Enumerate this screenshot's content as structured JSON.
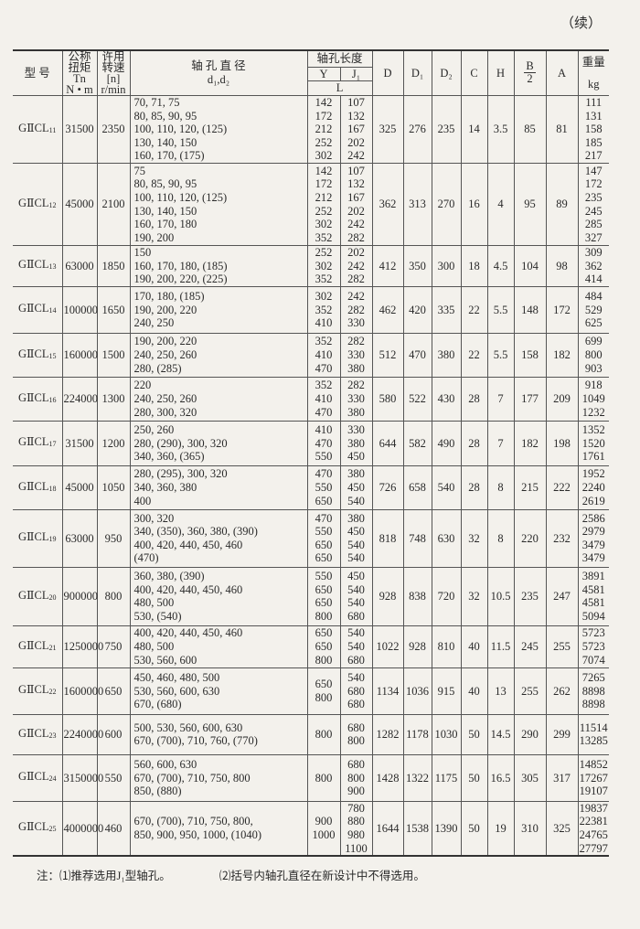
{
  "continued": "（续）",
  "header": {
    "model": "型  号",
    "torque": "公称\n扭矩\nTn\nN • m",
    "speed": "许用\n转速\n[n]\nr/min",
    "diameter": "轴  孔  直  径\nd₁,d₂",
    "length": "轴孔长度",
    "Y": "Y",
    "J1": "J₁",
    "L": "L",
    "D": "D",
    "D1": "D₁",
    "D2": "D₂",
    "C": "C",
    "H": "H",
    "B_top": "B",
    "B_bottom": "2",
    "A": "A",
    "weight": "重量\n\nkg"
  },
  "rows": [
    {
      "model": "GⅡCL",
      "sub": "11",
      "torque": "31500",
      "speed": "2350",
      "dia": [
        "70, 71, 75",
        "80, 85, 90, 95",
        "100, 110, 120, (125)",
        "130, 140, 150",
        "160, 170, (175)"
      ],
      "Y": [
        "142",
        "172",
        "212",
        "252",
        "302"
      ],
      "J1": [
        "107",
        "132",
        "167",
        "202",
        "242"
      ],
      "D": "325",
      "D1": "276",
      "D2": "235",
      "C": "14",
      "H": "3.5",
      "B2": "85",
      "A": "81",
      "kg": [
        "111",
        "131",
        "158",
        "185",
        "217"
      ]
    },
    {
      "model": "GⅡCL",
      "sub": "12",
      "torque": "45000",
      "speed": "2100",
      "dia": [
        "75",
        "80, 85, 90, 95",
        "100, 110, 120, (125)",
        "130, 140, 150",
        "160, 170, 180",
        "190, 200"
      ],
      "Y": [
        "142",
        "172",
        "212",
        "252",
        "302",
        "352"
      ],
      "J1": [
        "107",
        "132",
        "167",
        "202",
        "242",
        "282"
      ],
      "D": "362",
      "D1": "313",
      "D2": "270",
      "C": "16",
      "H": "4",
      "B2": "95",
      "A": "89",
      "kg": [
        "147",
        "172",
        "235",
        "245",
        "285",
        "327"
      ]
    },
    {
      "model": "GⅡCL",
      "sub": "13",
      "torque": "63000",
      "speed": "1850",
      "dia": [
        "150",
        "160, 170, 180, (185)",
        "190, 200, 220, (225)"
      ],
      "Y": [
        "252",
        "302",
        "352"
      ],
      "J1": [
        "202",
        "242",
        "282"
      ],
      "D": "412",
      "D1": "350",
      "D2": "300",
      "C": "18",
      "H": "4.5",
      "B2": "104",
      "A": "98",
      "kg": [
        "309",
        "362",
        "414"
      ]
    },
    {
      "model": "GⅡCL",
      "sub": "14",
      "torque": "100000",
      "speed": "1650",
      "dia": [
        "170, 180, (185)",
        "190, 200, 220",
        "240, 250"
      ],
      "Y": [
        "302",
        "352",
        "410"
      ],
      "J1": [
        "242",
        "282",
        "330"
      ],
      "D": "462",
      "D1": "420",
      "D2": "335",
      "C": "22",
      "H": "5.5",
      "B2": "148",
      "A": "172",
      "kg": [
        "484",
        "529",
        "625"
      ]
    },
    {
      "model": "GⅡCL",
      "sub": "15",
      "torque": "160000",
      "speed": "1500",
      "dia": [
        "190, 200, 220",
        "240, 250, 260",
        "280, (285)"
      ],
      "Y": [
        "352",
        "410",
        "470"
      ],
      "J1": [
        "282",
        "330",
        "380"
      ],
      "D": "512",
      "D1": "470",
      "D2": "380",
      "C": "22",
      "H": "5.5",
      "B2": "158",
      "A": "182",
      "kg": [
        "699",
        "800",
        "903"
      ]
    },
    {
      "model": "GⅡCL",
      "sub": "16",
      "torque": "224000",
      "speed": "1300",
      "dia": [
        "220",
        "240, 250, 260",
        "280, 300, 320"
      ],
      "Y": [
        "352",
        "410",
        "470"
      ],
      "J1": [
        "282",
        "330",
        "380"
      ],
      "D": "580",
      "D1": "522",
      "D2": "430",
      "C": "28",
      "H": "7",
      "B2": "177",
      "A": "209",
      "kg": [
        "918",
        "1049",
        "1232"
      ]
    },
    {
      "model": "GⅡCL",
      "sub": "17",
      "torque": "31500",
      "speed": "1200",
      "dia": [
        "250, 260",
        "280, (290), 300, 320",
        "340, 360, (365)"
      ],
      "Y": [
        "410",
        "470",
        "550"
      ],
      "J1": [
        "330",
        "380",
        "450"
      ],
      "D": "644",
      "D1": "582",
      "D2": "490",
      "C": "28",
      "H": "7",
      "B2": "182",
      "A": "198",
      "kg": [
        "1352",
        "1520",
        "1761"
      ]
    },
    {
      "model": "GⅡCL",
      "sub": "18",
      "torque": "45000",
      "speed": "1050",
      "dia": [
        "280, (295), 300, 320",
        "340, 360, 380",
        "400"
      ],
      "Y": [
        "470",
        "550",
        "650"
      ],
      "J1": [
        "380",
        "450",
        "540"
      ],
      "D": "726",
      "D1": "658",
      "D2": "540",
      "C": "28",
      "H": "8",
      "B2": "215",
      "A": "222",
      "kg": [
        "1952",
        "2240",
        "2619"
      ]
    },
    {
      "model": "GⅡCL",
      "sub": "19",
      "torque": "63000",
      "speed": "950",
      "dia": [
        "300, 320",
        "340, (350), 360, 380, (390)",
        "400, 420, 440, 450, 460",
        "(470)"
      ],
      "Y": [
        "470",
        "550",
        "650",
        "650"
      ],
      "J1": [
        "380",
        "450",
        "540",
        "540"
      ],
      "D": "818",
      "D1": "748",
      "D2": "630",
      "C": "32",
      "H": "8",
      "B2": "220",
      "A": "232",
      "kg": [
        "2586",
        "2979",
        "3479",
        "3479"
      ]
    },
    {
      "model": "GⅡCL",
      "sub": "20",
      "torque": "900000",
      "speed": "800",
      "dia": [
        "360, 380, (390)",
        "400, 420, 440, 450, 460",
        "480, 500",
        "530, (540)"
      ],
      "Y": [
        "550",
        "650",
        "650",
        "800"
      ],
      "J1": [
        "450",
        "540",
        "540",
        "680"
      ],
      "D": "928",
      "D1": "838",
      "D2": "720",
      "C": "32",
      "H": "10.5",
      "B2": "235",
      "A": "247",
      "kg": [
        "3891",
        "4581",
        "4581",
        "5094"
      ]
    },
    {
      "model": "GⅡCL",
      "sub": "21",
      "torque": "1250000",
      "speed": "750",
      "dia": [
        "400, 420, 440, 450, 460",
        "480, 500",
        "530, 560, 600"
      ],
      "Y": [
        "650",
        "650",
        "800"
      ],
      "J1": [
        "540",
        "540",
        "680"
      ],
      "D": "1022",
      "D1": "928",
      "D2": "810",
      "C": "40",
      "H": "11.5",
      "B2": "245",
      "A": "255",
      "kg": [
        "5723",
        "5723",
        "7074"
      ]
    },
    {
      "model": "GⅡCL",
      "sub": "22",
      "torque": "1600000",
      "speed": "650",
      "dia": [
        "450, 460, 480, 500",
        "530, 560, 600, 630",
        "670, (680)"
      ],
      "Y": [
        "650",
        "800"
      ],
      "J1": [
        "540",
        "680",
        "680"
      ],
      "D": "1134",
      "D1": "1036",
      "D2": "915",
      "C": "40",
      "H": "13",
      "B2": "255",
      "A": "262",
      "kg": [
        "7265",
        "8898",
        "8898"
      ]
    },
    {
      "model": "GⅡCL",
      "sub": "23",
      "torque": "2240000",
      "speed": "600",
      "dia": [
        "500, 530, 560, 600, 630",
        "670, (700), 710, 760, (770)"
      ],
      "Y": [
        "800"
      ],
      "J1": [
        "680",
        "800"
      ],
      "D": "1282",
      "D1": "1178",
      "D2": "1030",
      "C": "50",
      "H": "14.5",
      "B2": "290",
      "A": "299",
      "kg": [
        "11514",
        "13285"
      ]
    },
    {
      "model": "GⅡCL",
      "sub": "24",
      "torque": "3150000",
      "speed": "550",
      "dia": [
        "560, 600, 630",
        "670, (700), 710, 750, 800",
        "850, (880)"
      ],
      "Y": [
        "800"
      ],
      "J1": [
        "680",
        "800",
        "900"
      ],
      "D": "1428",
      "D1": "1322",
      "D2": "1175",
      "C": "50",
      "H": "16.5",
      "B2": "305",
      "A": "317",
      "kg": [
        "14852",
        "17267",
        "19107"
      ]
    },
    {
      "model": "GⅡCL",
      "sub": "25",
      "torque": "4000000",
      "speed": "460",
      "dia": [
        "670, (700), 710, 750, 800,",
        "850, 900, 950, 1000, (1040)"
      ],
      "Y": [
        "900",
        "1000"
      ],
      "J1": [
        "780",
        "880",
        "980",
        "1100"
      ],
      "D": "1644",
      "D1": "1538",
      "D2": "1390",
      "C": "50",
      "H": "19",
      "B2": "310",
      "A": "325",
      "kg": [
        "19837",
        "22381",
        "24765",
        "27797"
      ]
    }
  ],
  "notes": {
    "n1": "注：⑴推荐选用J₁型轴孔。",
    "n2": "⑵括号内轴孔直径在新设计中不得选用。"
  }
}
